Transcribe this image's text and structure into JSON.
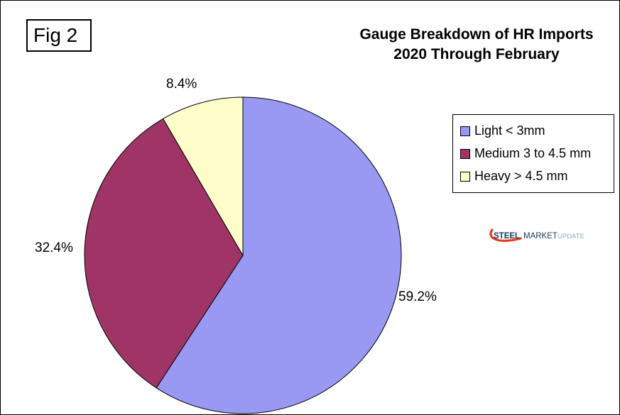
{
  "figure_label": "Fig 2",
  "title": {
    "line1": "Gauge Breakdown of HR Imports",
    "line2": "2020 Through February"
  },
  "logo": {
    "part1": "STEEL",
    "part2": "MARKET",
    "part3": "UPDATE",
    "steel_color": "#17375E",
    "market_color": "#17375E",
    "update_color": "#8AA4C8",
    "swoosh_color": "#E03C1F"
  },
  "chart_data": {
    "type": "pie",
    "title": "Gauge Breakdown of HR Imports 2020 Through February",
    "start_angle_deg": 0,
    "direction": "clockwise",
    "legend_position": "right",
    "slice_border_color": "#000000",
    "slices": [
      {
        "label": "Light < 3mm",
        "value": 59.2,
        "pct_label": "59.2%",
        "color": "#9999F3"
      },
      {
        "label": "Medium 3 to 4.5 mm",
        "value": 32.4,
        "pct_label": "32.4%",
        "color": "#9E3566"
      },
      {
        "label": "Heavy > 4.5 mm",
        "value": 8.4,
        "pct_label": "8.4%",
        "color": "#FFFFCC"
      }
    ]
  }
}
